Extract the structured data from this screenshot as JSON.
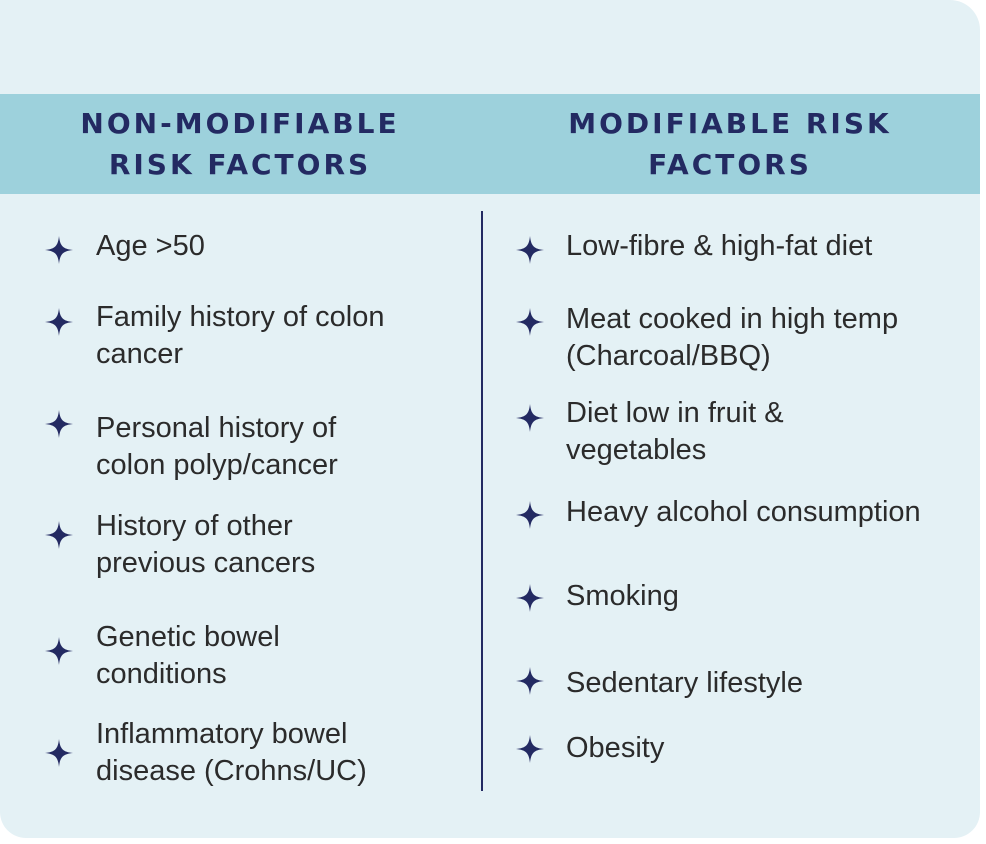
{
  "colors": {
    "card_bg": "#e4f1f5",
    "header_bg": "#9dd1dc",
    "accent": "#232a62",
    "text": "#2b2b2b"
  },
  "bullet_icon": "four-point-star",
  "left_column": {
    "title": "NON-MODIFIABLE\nRISK FACTORS",
    "items": [
      "Age >50",
      "Family history of colon\ncancer",
      "Personal history of\ncolon polyp/cancer",
      "History of other\nprevious cancers",
      "Genetic bowel\nconditions",
      "Inflammatory bowel\ndisease (Crohns/UC)"
    ]
  },
  "right_column": {
    "title": "MODIFIABLE RISK\nFACTORS",
    "items": [
      "Low-fibre & high-fat diet",
      "Meat cooked in high temp\n(Charcoal/BBQ)",
      "Diet low in fruit &\nvegetables",
      "Heavy alcohol consumption",
      "Smoking",
      "Sedentary lifestyle",
      "Obesity"
    ]
  }
}
